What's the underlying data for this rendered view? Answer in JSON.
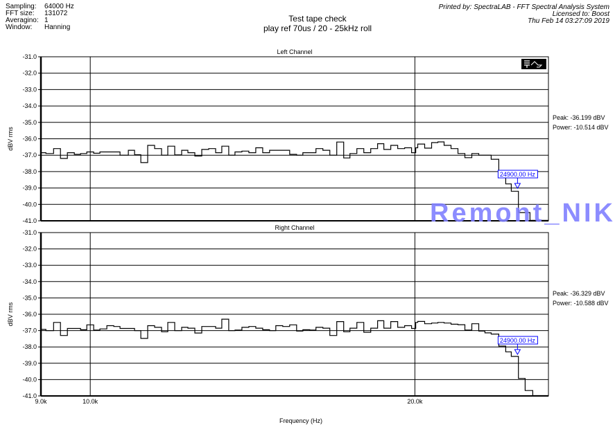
{
  "header": {
    "info": [
      {
        "label": "Sampling:",
        "value": "64000 Hz"
      },
      {
        "label": "FFT size:",
        "value": "131072"
      },
      {
        "label": "Averagino:",
        "value": "1"
      },
      {
        "label": "Window:",
        "value": "Hanning"
      }
    ],
    "title_line1": "Test tape check",
    "title_line2": "play ref 70us / 20 - 25kHz roll",
    "printed_by": "Printed by: SpectraLAB - FFT Spectral Analysis System",
    "licensed_to": "Licensed to: Boost",
    "date": "Thu Feb 14 03:27:09 2019"
  },
  "watermark": "Remont_NIK",
  "colors": {
    "trace": "#000000",
    "marker": "#0000ff",
    "watermark": "#8080ff",
    "grid": "#000000"
  },
  "toolbar_icon": "cursor-waveform-icon",
  "chart_data": [
    {
      "type": "line",
      "step": true,
      "title": "Left Channel",
      "xlabel": "Frequency (Hz)",
      "ylabel": "dBV rms",
      "xscale": "log",
      "xlim": [
        9000,
        26600
      ],
      "ylim": [
        -41,
        -31
      ],
      "yticks": [
        "-31.0",
        "-32.0",
        "-33.0",
        "-34.0",
        "-35.0",
        "-36.0",
        "-37.0",
        "-38.0",
        "-39.0",
        "-40.0",
        "-41.0"
      ],
      "xticks": [
        {
          "value": 9000,
          "label": "9.0k"
        },
        {
          "value": 10000,
          "label": "10.0k"
        },
        {
          "value": 20000,
          "label": "20.0k"
        }
      ],
      "grid": true,
      "peak": "Peak: -36.199 dBV",
      "power": "Power: -10.514 dBV",
      "marker": {
        "freq": 24900,
        "label": "24900.00 Hz"
      },
      "points": [
        [
          9000,
          -36.85
        ],
        [
          9096,
          -36.9
        ],
        [
          9247,
          -36.6
        ],
        [
          9384,
          -37.2
        ],
        [
          9524,
          -36.85
        ],
        [
          9666,
          -36.95
        ],
        [
          9795,
          -36.9
        ],
        [
          9926,
          -36.8
        ],
        [
          10074,
          -36.88
        ],
        [
          10209,
          -36.8
        ],
        [
          10656,
          -37.0
        ],
        [
          10847,
          -36.7
        ],
        [
          10993,
          -36.97
        ],
        [
          11140,
          -37.45
        ],
        [
          11304,
          -36.4
        ],
        [
          11473,
          -36.6
        ],
        [
          11644,
          -37.0
        ],
        [
          11800,
          -36.45
        ],
        [
          11976,
          -36.98
        ],
        [
          12155,
          -36.7
        ],
        [
          12318,
          -36.85
        ],
        [
          12502,
          -37.05
        ],
        [
          12688,
          -36.65
        ],
        [
          12877,
          -36.6
        ],
        [
          13069,
          -36.85
        ],
        [
          13244,
          -36.45
        ],
        [
          13441,
          -37.0
        ],
        [
          13621,
          -36.8
        ],
        [
          13824,
          -36.75
        ],
        [
          14030,
          -36.85
        ],
        [
          14239,
          -36.55
        ],
        [
          14451,
          -36.85
        ],
        [
          14666,
          -36.7
        ],
        [
          15308,
          -36.95
        ],
        [
          15536,
          -37.0
        ],
        [
          15745,
          -36.85
        ],
        [
          16193,
          -36.6
        ],
        [
          16434,
          -36.7
        ],
        [
          16679,
          -37.0
        ],
        [
          16928,
          -36.2
        ],
        [
          17180,
          -37.17
        ],
        [
          17410,
          -36.9
        ],
        [
          17669,
          -36.6
        ],
        [
          17933,
          -36.85
        ],
        [
          18200,
          -36.6
        ],
        [
          18471,
          -36.3
        ],
        [
          18718,
          -36.65
        ],
        [
          18997,
          -36.4
        ],
        [
          19280,
          -36.6
        ],
        [
          19567,
          -36.55
        ],
        [
          19858,
          -36.85
        ],
        [
          20035,
          -36.55
        ],
        [
          20124,
          -36.32
        ],
        [
          20424,
          -36.57
        ],
        [
          20728,
          -36.23
        ],
        [
          21006,
          -36.19
        ],
        [
          21287,
          -36.4
        ],
        [
          21604,
          -36.6
        ],
        [
          21926,
          -36.9
        ],
        [
          22253,
          -37.15
        ],
        [
          22585,
          -36.9
        ],
        [
          22921,
          -37.0
        ],
        [
          23539,
          -37.25
        ],
        [
          23925,
          -37.95
        ],
        [
          24281,
          -38.75
        ],
        [
          24570,
          -39.2
        ],
        [
          24950,
          -40.5
        ],
        [
          25571,
          -40.97
        ]
      ]
    },
    {
      "type": "line",
      "step": true,
      "title": "Right Channel",
      "xlabel": "Frequency (Hz)",
      "ylabel": "dBV rms",
      "xscale": "log",
      "xlim": [
        9000,
        26600
      ],
      "ylim": [
        -41,
        -31
      ],
      "yticks": [
        "-31.0",
        "-32.0",
        "-33.0",
        "-34.0",
        "-35.0",
        "-36.0",
        "-37.0",
        "-38.0",
        "-39.0",
        "-40.0",
        "-41.0"
      ],
      "xticks": [
        {
          "value": 9000,
          "label": "9.0k"
        },
        {
          "value": 10000,
          "label": "10.0k"
        },
        {
          "value": 20000,
          "label": "20.0k"
        }
      ],
      "grid": true,
      "peak": "Peak: -36.329 dBV",
      "power": "Power: -10.588 dBV",
      "marker": {
        "freq": 24900,
        "label": "24900.00 Hz"
      },
      "points": [
        [
          9000,
          -36.93
        ],
        [
          9096,
          -37.0
        ],
        [
          9247,
          -36.5
        ],
        [
          9384,
          -37.3
        ],
        [
          9524,
          -36.87
        ],
        [
          9795,
          -36.95
        ],
        [
          9926,
          -36.65
        ],
        [
          10074,
          -36.97
        ],
        [
          10209,
          -36.9
        ],
        [
          10361,
          -36.7
        ],
        [
          10515,
          -36.75
        ],
        [
          10656,
          -36.87
        ],
        [
          10993,
          -37.0
        ],
        [
          11140,
          -37.48
        ],
        [
          11304,
          -36.7
        ],
        [
          11473,
          -36.8
        ],
        [
          11644,
          -37.07
        ],
        [
          11800,
          -36.5
        ],
        [
          11976,
          -37.0
        ],
        [
          12155,
          -36.8
        ],
        [
          12318,
          -36.85
        ],
        [
          12502,
          -37.15
        ],
        [
          12688,
          -36.75
        ],
        [
          13069,
          -36.85
        ],
        [
          13244,
          -36.3
        ],
        [
          13441,
          -37.0
        ],
        [
          13621,
          -36.97
        ],
        [
          13824,
          -36.8
        ],
        [
          14030,
          -36.75
        ],
        [
          14239,
          -36.85
        ],
        [
          14451,
          -36.95
        ],
        [
          14666,
          -37.0
        ],
        [
          14862,
          -36.7
        ],
        [
          15084,
          -36.75
        ],
        [
          15308,
          -36.65
        ],
        [
          15536,
          -37.03
        ],
        [
          15745,
          -36.95
        ],
        [
          15979,
          -36.97
        ],
        [
          16193,
          -36.8
        ],
        [
          16434,
          -36.85
        ],
        [
          16679,
          -37.3
        ],
        [
          16928,
          -36.45
        ],
        [
          17180,
          -37.07
        ],
        [
          17410,
          -36.85
        ],
        [
          17669,
          -36.5
        ],
        [
          17933,
          -37.1
        ],
        [
          18200,
          -36.85
        ],
        [
          18471,
          -36.4
        ],
        [
          18718,
          -36.85
        ],
        [
          18997,
          -36.45
        ],
        [
          19280,
          -36.8
        ],
        [
          19567,
          -36.7
        ],
        [
          19858,
          -36.87
        ],
        [
          20035,
          -36.5
        ],
        [
          20124,
          -36.44
        ],
        [
          20424,
          -36.58
        ],
        [
          20728,
          -36.54
        ],
        [
          21006,
          -36.5
        ],
        [
          21287,
          -36.54
        ],
        [
          21604,
          -36.61
        ],
        [
          21926,
          -36.64
        ],
        [
          22253,
          -36.97
        ],
        [
          22585,
          -36.58
        ],
        [
          22921,
          -37.03
        ],
        [
          23228,
          -37.14
        ],
        [
          23539,
          -37.21
        ],
        [
          23925,
          -37.95
        ],
        [
          24281,
          -38.3
        ],
        [
          24570,
          -38.58
        ],
        [
          24950,
          -39.93
        ],
        [
          25308,
          -40.67
        ],
        [
          25723,
          -40.98
        ]
      ]
    }
  ]
}
